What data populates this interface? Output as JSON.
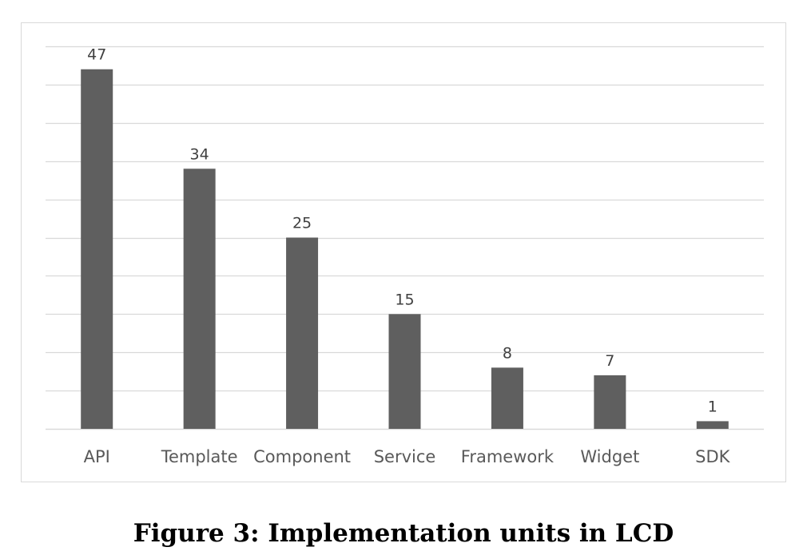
{
  "figure": {
    "caption": "Figure 3: Implementation units in LCD"
  },
  "colors": {
    "bar": "#5f5f5f",
    "gridline": "#d9d9d9",
    "frame": "#d9d9d9"
  },
  "chart_data": {
    "type": "bar",
    "categories": [
      "API",
      "Template",
      "Component",
      "Service",
      "Framework",
      "Widget",
      "SDK"
    ],
    "values": [
      47,
      34,
      25,
      15,
      8,
      7,
      1
    ],
    "title": "",
    "xlabel": "",
    "ylabel": "",
    "ylim": [
      0,
      50
    ],
    "grid": true,
    "gridline_step": 5,
    "data_labels": true,
    "legend": "none"
  }
}
